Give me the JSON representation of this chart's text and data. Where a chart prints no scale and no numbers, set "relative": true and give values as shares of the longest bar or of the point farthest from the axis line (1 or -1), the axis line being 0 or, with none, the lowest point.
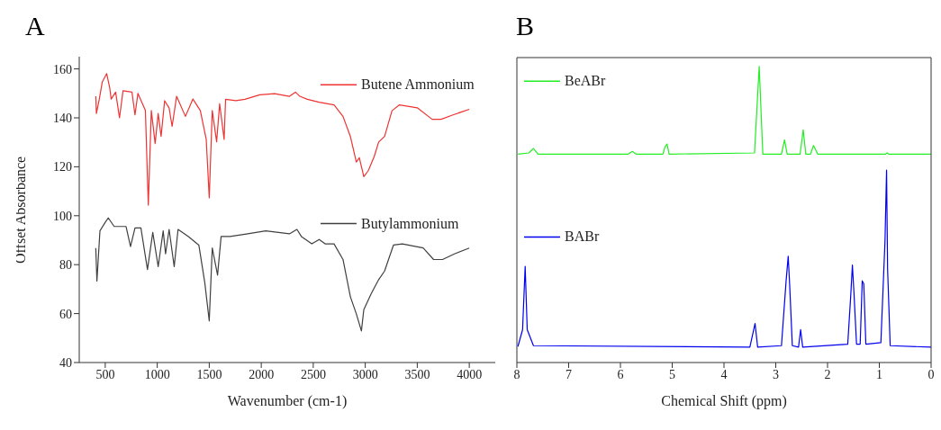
{
  "chart_data": [
    {
      "type": "line",
      "title": "A",
      "xlabel": "Wavenumber (cm-1)",
      "ylabel": "Offset Absorbance",
      "xlim": [
        250,
        4250
      ],
      "xticks": [
        500,
        1000,
        1500,
        2000,
        2500,
        3000,
        3500,
        4000
      ],
      "ylim": [
        40,
        165
      ],
      "yticks": [
        40,
        60,
        80,
        100,
        120,
        140,
        160
      ],
      "legend": "right",
      "grid": false,
      "series": [
        {
          "name": "Butene Ammonium",
          "color": "#ee3333",
          "x": [
            409,
            415,
            443,
            471,
            514,
            543,
            557,
            600,
            637,
            671,
            757,
            786,
            814,
            886,
            914,
            943,
            980,
            1009,
            1037,
            1071,
            1114,
            1143,
            1186,
            1271,
            1343,
            1414,
            1471,
            1500,
            1529,
            1571,
            1600,
            1643,
            1657,
            1757,
            1843,
            1986,
            2129,
            2271,
            2329,
            2371,
            2443,
            2557,
            2700,
            2786,
            2857,
            2914,
            2943,
            2986,
            3029,
            3086,
            3129,
            3186,
            3257,
            3329,
            3500,
            3643,
            3729,
            3843,
            4000
          ],
          "values": [
            148.8,
            141.8,
            147.7,
            154.6,
            158.1,
            152.3,
            147.7,
            150.5,
            140,
            151.1,
            150.5,
            141.2,
            150,
            143,
            104.3,
            143,
            129.5,
            141.8,
            132.4,
            147,
            144.1,
            136.5,
            148.8,
            140.6,
            147.7,
            143,
            131.2,
            107.3,
            143,
            130.2,
            145.8,
            131.2,
            147.6,
            147,
            147.6,
            149.4,
            149.9,
            148.8,
            150.5,
            148.8,
            147.6,
            146.4,
            145.3,
            140.6,
            132.4,
            121.9,
            123.7,
            116,
            118.4,
            124.2,
            130.1,
            132.4,
            142.9,
            145.3,
            144.1,
            139.4,
            139.4,
            141.2,
            143.5
          ]
        },
        {
          "name": "Butylammonium",
          "color": "#404040",
          "x": [
            409,
            420,
            449,
            500,
            529,
            586,
            700,
            743,
            786,
            843,
            906,
            957,
            1009,
            1057,
            1080,
            1114,
            1163,
            1200,
            1300,
            1400,
            1457,
            1500,
            1529,
            1580,
            1614,
            1700,
            1871,
            2043,
            2271,
            2343,
            2386,
            2486,
            2557,
            2614,
            2700,
            2786,
            2857,
            2914,
            2963,
            2986,
            3057,
            3129,
            3186,
            3271,
            3357,
            3557,
            3657,
            3743,
            3857,
            4000
          ],
          "values": [
            86.8,
            73.3,
            93.8,
            97.3,
            99.1,
            95.6,
            95.6,
            87.4,
            95,
            95,
            78,
            93.2,
            79.2,
            93.8,
            84.4,
            94.4,
            79.2,
            94.4,
            91.5,
            88,
            72.7,
            57,
            86.8,
            75.7,
            91.5,
            91.5,
            92.6,
            93.8,
            92.6,
            94.4,
            91.5,
            88.5,
            90.3,
            88.5,
            88.5,
            82.1,
            66.9,
            59.9,
            52.9,
            61.6,
            68.1,
            73.9,
            77.4,
            88,
            88.5,
            86.8,
            82.1,
            82.1,
            84.4,
            86.8
          ]
        }
      ]
    },
    {
      "type": "line",
      "title": "B",
      "xlabel": "Chemical Shift (ppm)",
      "relative": true,
      "xlim": [
        8,
        0
      ],
      "xticks": [
        8,
        7,
        6,
        5,
        4,
        3,
        2,
        1,
        0
      ],
      "legend": "left",
      "grid": false,
      "series": [
        {
          "name": "BeABr",
          "color": "#22ee22",
          "x": [
            7.98,
            7.77,
            7.68,
            7.59,
            5.85,
            5.77,
            5.7,
            5.18,
            5.14,
            5.1,
            5.06,
            3.41,
            3.32,
            3.25,
            2.89,
            2.83,
            2.78,
            2.53,
            2.47,
            2.42,
            2.33,
            2.27,
            2.19,
            0.88,
            0.85,
            0.82,
            0
          ],
          "values": [
            0.704,
            0.708,
            0.723,
            0.704,
            0.704,
            0.713,
            0.704,
            0.704,
            0.728,
            0.738,
            0.704,
            0.708,
            1,
            0.704,
            0.704,
            0.752,
            0.704,
            0.704,
            0.786,
            0.704,
            0.704,
            0.733,
            0.704,
            0.704,
            0.708,
            0.704,
            0.704
          ]
        },
        {
          "name": "BABr",
          "color": "#0000ee",
          "x": [
            7.98,
            7.89,
            7.84,
            7.8,
            7.68,
            3.5,
            3.4,
            3.35,
            2.89,
            2.8,
            2.76,
            2.73,
            2.68,
            2.56,
            2.52,
            2.48,
            1.61,
            1.55,
            1.52,
            1.49,
            1.44,
            1.37,
            1.33,
            1.3,
            1.26,
            0.97,
            0.89,
            0.86,
            0.84,
            0.79,
            0
          ],
          "values": [
            0.054,
            0.111,
            0.325,
            0.111,
            0.057,
            0.052,
            0.132,
            0.052,
            0.057,
            0.276,
            0.359,
            0.257,
            0.057,
            0.052,
            0.111,
            0.052,
            0.062,
            0.232,
            0.329,
            0.237,
            0.062,
            0.062,
            0.276,
            0.266,
            0.062,
            0.067,
            0.412,
            0.65,
            0.315,
            0.057,
            0.052
          ]
        }
      ]
    }
  ]
}
